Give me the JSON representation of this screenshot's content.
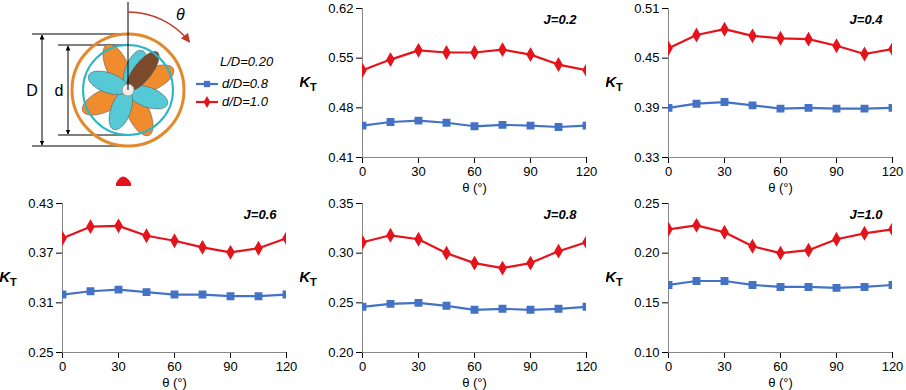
{
  "diagram": {
    "labels": {
      "D": "D",
      "d": "d",
      "theta": "θ"
    },
    "legend_title": "L/D=0.20"
  },
  "chart_data": [
    {
      "type": "line",
      "title": "J=0.2",
      "x_label": "θ (°)",
      "y_label": "KT",
      "x": [
        0,
        15,
        30,
        45,
        60,
        75,
        90,
        105,
        120
      ],
      "xlim": [
        0,
        120
      ],
      "xticks": [
        0,
        30,
        60,
        90,
        120
      ],
      "ylim": [
        0.41,
        0.62
      ],
      "yticks": [
        0.41,
        0.48,
        0.55,
        0.62
      ],
      "series": [
        {
          "name": "d/D=0.8",
          "color": "#4472c4",
          "marker": "square",
          "values": [
            0.455,
            0.46,
            0.462,
            0.459,
            0.454,
            0.456,
            0.455,
            0.453,
            0.455
          ]
        },
        {
          "name": "d/D=1.0",
          "color": "#e3141c",
          "marker": "diamond",
          "values": [
            0.533,
            0.548,
            0.561,
            0.558,
            0.558,
            0.562,
            0.555,
            0.541,
            0.533
          ]
        }
      ]
    },
    {
      "type": "line",
      "title": "J=0.4",
      "x_label": "θ (°)",
      "y_label": "KT",
      "x": [
        0,
        15,
        30,
        45,
        60,
        75,
        90,
        105,
        120
      ],
      "xlim": [
        0,
        120
      ],
      "xticks": [
        0,
        30,
        60,
        90,
        120
      ],
      "ylim": [
        0.33,
        0.51
      ],
      "yticks": [
        0.33,
        0.39,
        0.45,
        0.51
      ],
      "series": [
        {
          "name": "d/D=0.8",
          "color": "#4472c4",
          "marker": "square",
          "values": [
            0.39,
            0.395,
            0.397,
            0.393,
            0.389,
            0.39,
            0.389,
            0.389,
            0.39
          ]
        },
        {
          "name": "d/D=1.0",
          "color": "#e3141c",
          "marker": "diamond",
          "values": [
            0.462,
            0.478,
            0.485,
            0.477,
            0.474,
            0.473,
            0.465,
            0.455,
            0.461
          ]
        }
      ]
    },
    {
      "type": "line",
      "title": "J=0.6",
      "x_label": "θ (°)",
      "y_label": "KT",
      "x": [
        0,
        15,
        30,
        45,
        60,
        75,
        90,
        105,
        120
      ],
      "xlim": [
        0,
        120
      ],
      "xticks": [
        0,
        30,
        60,
        90,
        120
      ],
      "ylim": [
        0.25,
        0.43
      ],
      "yticks": [
        0.25,
        0.31,
        0.37,
        0.43
      ],
      "series": [
        {
          "name": "d/D=0.8",
          "color": "#4472c4",
          "marker": "square",
          "values": [
            0.32,
            0.324,
            0.326,
            0.323,
            0.32,
            0.32,
            0.318,
            0.318,
            0.32
          ]
        },
        {
          "name": "d/D=1.0",
          "color": "#e3141c",
          "marker": "diamond",
          "values": [
            0.388,
            0.402,
            0.403,
            0.391,
            0.385,
            0.377,
            0.371,
            0.376,
            0.388
          ]
        }
      ]
    },
    {
      "type": "line",
      "title": "J=0.8",
      "x_label": "θ (°)",
      "y_label": "KT",
      "x": [
        0,
        15,
        30,
        45,
        60,
        75,
        90,
        105,
        120
      ],
      "xlim": [
        0,
        120
      ],
      "xticks": [
        0,
        30,
        60,
        90,
        120
      ],
      "ylim": [
        0.2,
        0.35
      ],
      "yticks": [
        {
          "value": 0.2,
          "label": "0.20"
        },
        0.25,
        {
          "value": 0.3,
          "label": "0.30"
        },
        0.35
      ],
      "series": [
        {
          "name": "d/D=0.8",
          "color": "#4472c4",
          "marker": "square",
          "values": [
            0.246,
            0.249,
            0.25,
            0.247,
            0.243,
            0.244,
            0.243,
            0.244,
            0.246
          ]
        },
        {
          "name": "d/D=1.0",
          "color": "#e3141c",
          "marker": "diamond",
          "values": [
            0.311,
            0.318,
            0.314,
            0.3,
            0.29,
            0.285,
            0.29,
            0.302,
            0.311
          ]
        }
      ]
    },
    {
      "type": "line",
      "title": "J=1.0",
      "x_label": "θ (°)",
      "y_label": "KT",
      "x": [
        0,
        15,
        30,
        45,
        60,
        75,
        90,
        105,
        120
      ],
      "xlim": [
        0,
        120
      ],
      "xticks": [
        0,
        30,
        60,
        90,
        120
      ],
      "ylim": [
        0.1,
        0.25
      ],
      "yticks": [
        {
          "value": 0.1,
          "label": "0.10"
        },
        0.15,
        {
          "value": 0.2,
          "label": "0.20"
        },
        0.25
      ],
      "series": [
        {
          "name": "d/D=0.8",
          "color": "#4472c4",
          "marker": "square",
          "values": [
            0.168,
            0.172,
            0.172,
            0.168,
            0.166,
            0.166,
            0.165,
            0.166,
            0.168
          ]
        },
        {
          "name": "d/D=1.0",
          "color": "#e3141c",
          "marker": "diamond",
          "values": [
            0.224,
            0.228,
            0.221,
            0.207,
            0.2,
            0.203,
            0.214,
            0.22,
            0.224
          ]
        }
      ]
    }
  ]
}
